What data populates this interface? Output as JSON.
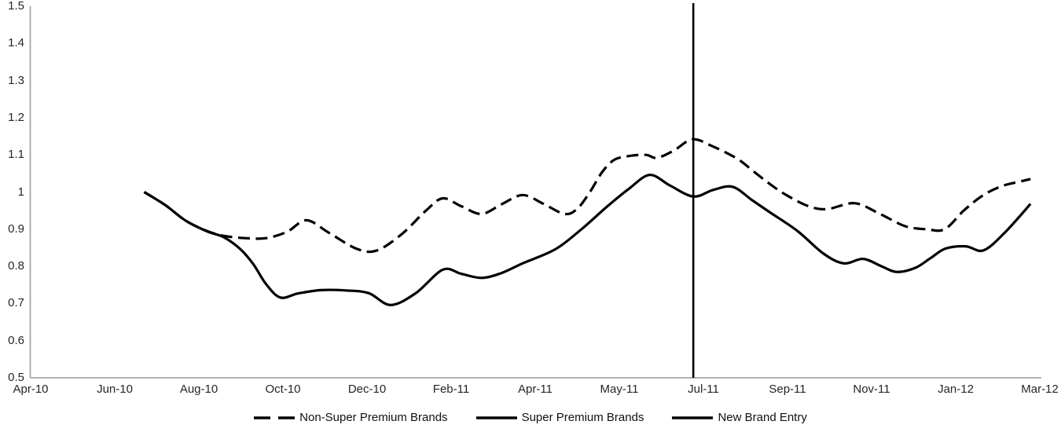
{
  "chart_data": {
    "type": "line",
    "title": "",
    "xlabel": "",
    "ylabel": "",
    "ylim": [
      0.5,
      1.5
    ],
    "y_tick_step": 0.1,
    "grid": false,
    "legend_position": "bottom",
    "background_color": "#ffffff",
    "axis_color": "#a6a6a6",
    "text_color": "#262626",
    "line_color": "#000000",
    "x_tick_labels": [
      "Apr-10",
      "Jun-10",
      "Aug-10",
      "Oct-10",
      "Dec-10",
      "Feb-11",
      "Apr-11",
      "May-11",
      "Jul-11",
      "Sep-11",
      "Nov-11",
      "Jan-12",
      "Mar-12"
    ],
    "y_tick_labels": [
      "0.5",
      "0.6",
      "0.7",
      "0.8",
      "0.9",
      "1",
      "1.1",
      "1.2",
      "1.3",
      "1.4",
      "1.5"
    ],
    "x_note": "series point x-values are in tick-index units (0 = Apr-10 tick, 12 = Mar-12 tick)",
    "series": [
      {
        "name": "Non-Super Premium Brands",
        "style": "dashed",
        "color": "#000000",
        "points": [
          [
            1.35,
            1.0
          ],
          [
            1.6,
            0.965
          ],
          [
            1.85,
            0.922
          ],
          [
            2.1,
            0.895
          ],
          [
            2.3,
            0.882
          ],
          [
            2.55,
            0.876
          ],
          [
            2.8,
            0.876
          ],
          [
            3.05,
            0.893
          ],
          [
            3.28,
            0.924
          ],
          [
            3.55,
            0.89
          ],
          [
            3.88,
            0.847
          ],
          [
            4.12,
            0.843
          ],
          [
            4.42,
            0.888
          ],
          [
            4.7,
            0.95
          ],
          [
            4.9,
            0.983
          ],
          [
            5.12,
            0.962
          ],
          [
            5.36,
            0.941
          ],
          [
            5.6,
            0.967
          ],
          [
            5.85,
            0.992
          ],
          [
            6.1,
            0.968
          ],
          [
            6.35,
            0.941
          ],
          [
            6.5,
            0.955
          ],
          [
            6.65,
            1.0
          ],
          [
            6.8,
            1.055
          ],
          [
            6.95,
            1.088
          ],
          [
            7.15,
            1.098
          ],
          [
            7.32,
            1.1
          ],
          [
            7.45,
            1.092
          ],
          [
            7.65,
            1.112
          ],
          [
            7.87,
            1.142
          ],
          [
            8.1,
            1.124
          ],
          [
            8.4,
            1.09
          ],
          [
            8.6,
            1.055
          ],
          [
            8.8,
            1.02
          ],
          [
            9.0,
            0.99
          ],
          [
            9.25,
            0.962
          ],
          [
            9.47,
            0.954
          ],
          [
            9.8,
            0.97
          ],
          [
            10.1,
            0.941
          ],
          [
            10.4,
            0.908
          ],
          [
            10.65,
            0.9
          ],
          [
            10.87,
            0.9
          ],
          [
            11.1,
            0.951
          ],
          [
            11.33,
            0.992
          ],
          [
            11.55,
            1.016
          ],
          [
            11.72,
            1.026
          ],
          [
            11.89,
            1.035
          ]
        ]
      },
      {
        "name": "Super Premium Brands",
        "style": "solid",
        "color": "#000000",
        "points": [
          [
            1.35,
            1.0
          ],
          [
            1.6,
            0.965
          ],
          [
            1.85,
            0.922
          ],
          [
            2.1,
            0.894
          ],
          [
            2.3,
            0.878
          ],
          [
            2.5,
            0.845
          ],
          [
            2.65,
            0.805
          ],
          [
            2.8,
            0.752
          ],
          [
            2.97,
            0.716
          ],
          [
            3.18,
            0.727
          ],
          [
            3.45,
            0.736
          ],
          [
            3.75,
            0.735
          ],
          [
            4.02,
            0.728
          ],
          [
            4.28,
            0.696
          ],
          [
            4.58,
            0.728
          ],
          [
            4.9,
            0.791
          ],
          [
            5.12,
            0.78
          ],
          [
            5.36,
            0.769
          ],
          [
            5.6,
            0.782
          ],
          [
            5.85,
            0.808
          ],
          [
            6.24,
            0.846
          ],
          [
            6.55,
            0.9
          ],
          [
            6.86,
            0.962
          ],
          [
            7.11,
            1.008
          ],
          [
            7.36,
            1.046
          ],
          [
            7.6,
            1.018
          ],
          [
            7.88,
            0.988
          ],
          [
            8.12,
            1.006
          ],
          [
            8.35,
            1.014
          ],
          [
            8.58,
            0.978
          ],
          [
            8.8,
            0.944
          ],
          [
            9.12,
            0.895
          ],
          [
            9.43,
            0.834
          ],
          [
            9.67,
            0.808
          ],
          [
            9.9,
            0.82
          ],
          [
            10.12,
            0.8
          ],
          [
            10.3,
            0.785
          ],
          [
            10.52,
            0.796
          ],
          [
            10.7,
            0.822
          ],
          [
            10.88,
            0.848
          ],
          [
            11.12,
            0.854
          ],
          [
            11.33,
            0.843
          ],
          [
            11.58,
            0.89
          ],
          [
            11.89,
            0.968
          ]
        ]
      },
      {
        "name": "New Brand Entry",
        "style": "vline",
        "color": "#000000",
        "x": 7.88
      }
    ]
  }
}
